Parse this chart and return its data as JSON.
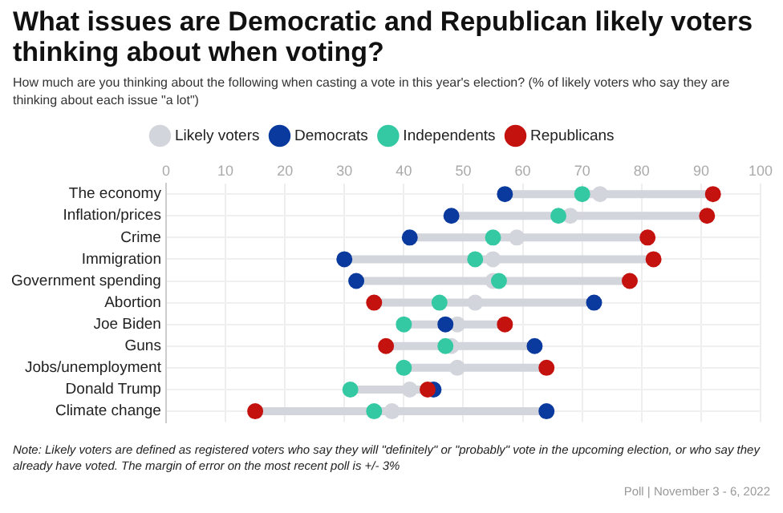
{
  "chart_data": {
    "type": "scatter",
    "orientation": "horizontal",
    "title": "What issues are Democratic and Republican likely voters thinking about when voting?",
    "subtitle": "How much are you thinking about the following when casting a vote in this year's election? (% of likely voters who say they are thinking about each issue \"a lot\")",
    "categories": [
      "The economy",
      "Inflation/prices",
      "Crime",
      "Immigration",
      "Government spending",
      "Abortion",
      "Joe Biden",
      "Guns",
      "Jobs/unemployment",
      "Donald Trump",
      "Climate change"
    ],
    "series": [
      {
        "name": "Likely voters",
        "color": "#d3d5dc",
        "values": [
          73,
          68,
          59,
          55,
          55,
          52,
          49,
          48,
          49,
          41,
          38
        ]
      },
      {
        "name": "Democrats",
        "color": "#0a3a9e",
        "values": [
          57,
          48,
          41,
          30,
          32,
          72,
          47,
          62,
          null,
          45,
          64
        ]
      },
      {
        "name": "Independents",
        "color": "#34c9a3",
        "values": [
          70,
          66,
          55,
          52,
          56,
          46,
          40,
          47,
          40,
          31,
          35
        ]
      },
      {
        "name": "Republicans",
        "color": "#c4120f",
        "values": [
          92,
          91,
          81,
          82,
          78,
          35,
          57,
          37,
          64,
          44,
          15
        ]
      }
    ],
    "xlim": [
      0,
      100
    ],
    "xticks": [
      0,
      10,
      20,
      30,
      40,
      50,
      60,
      70,
      80,
      90,
      100
    ],
    "grid": true,
    "legend": "top",
    "marker": "circle",
    "annotations": [
      "Note: Likely voters are defined as registered voters who say they will \"definitely\" or \"probably\" vote in the upcoming election, or who say they already have voted. The margin of error on the most recent poll is +/- 3%",
      "Poll | November 3 - 6, 2022"
    ]
  }
}
